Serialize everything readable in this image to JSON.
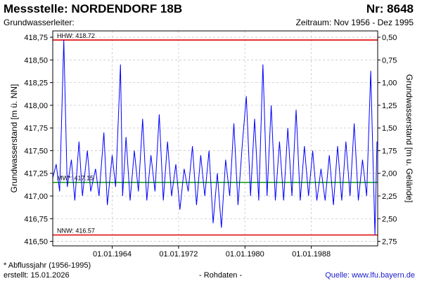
{
  "header": {
    "title": "Messstelle: NORDENDORF 18B",
    "number": "Nr: 8648",
    "aquifer": "Grundwasserleiter:",
    "period": "Zeitraum: Nov 1956 - Dez 1995"
  },
  "footer": {
    "note": "* Abflussjahr (1956-1995)",
    "created": "erstellt:  15.01.2026",
    "raw": "- Rohdaten -",
    "source": "Quelle:  www.lfu.bayern.de"
  },
  "colors": {
    "series": "#0000ff",
    "extreme_lines": "#e00000",
    "mean_line": "#009900",
    "grid": "#c8c8c8"
  },
  "chart_data": {
    "type": "line",
    "ylabel": "Grundwasserstand [m ü. NN]",
    "ylabel_right": "Grundwasserstand [m u. Gelände]",
    "ylim": [
      416.45,
      418.82
    ],
    "xlim": [
      "1956-11-01",
      "1995-12-31"
    ],
    "grid": true,
    "y_ticks": [
      "416,50",
      "416,75",
      "417,00",
      "417,25",
      "417,50",
      "417,75",
      "418,00",
      "418,25",
      "418,50",
      "418,75"
    ],
    "y_tick_values": [
      416.5,
      416.75,
      417.0,
      417.25,
      417.5,
      417.75,
      418.0,
      418.25,
      418.5,
      418.75
    ],
    "y_ticks_right": [
      "0,50",
      "0,75",
      "1,00",
      "1,25",
      "1,50",
      "1,75",
      "2,00",
      "2,25",
      "2,50",
      "2,75"
    ],
    "y_tick_right_values": [
      0.5,
      0.75,
      1.0,
      1.25,
      1.5,
      1.75,
      2.0,
      2.25,
      2.5,
      2.75
    ],
    "x_ticks": [
      "01.01.1964",
      "01.01.1972",
      "01.01.1980",
      "01.01.1988"
    ],
    "x_tick_dates": [
      "1964-01-01",
      "1972-01-01",
      "1980-01-01",
      "1988-01-01"
    ],
    "reference_lines": [
      {
        "label": "HHW: 418.72",
        "value": 418.72,
        "kind": "extreme"
      },
      {
        "label": "MW*: 417.15",
        "value": 417.15,
        "kind": "mean"
      },
      {
        "label": "NNW: 416.57",
        "value": 416.57,
        "kind": "extreme"
      }
    ],
    "series": [
      {
        "x": [
          "1956-11-01",
          "1957-04-01",
          "1957-09-01",
          "1958-03-01",
          "1958-08-01",
          "1959-02-01",
          "1959-07-01",
          "1960-01-01",
          "1960-06-01",
          "1961-01-01",
          "1961-06-01",
          "1962-01-01",
          "1962-06-01",
          "1963-01-01",
          "1963-06-01",
          "1964-01-01",
          "1964-06-01",
          "1965-01-01",
          "1965-04-01",
          "1965-09-01",
          "1966-03-01",
          "1966-09-01",
          "1967-03-01",
          "1967-09-01",
          "1968-03-01",
          "1968-09-01",
          "1969-03-01",
          "1969-09-01",
          "1970-03-01",
          "1970-09-01",
          "1971-03-01",
          "1971-09-01",
          "1972-03-01",
          "1972-09-01",
          "1973-03-01",
          "1973-09-01",
          "1974-03-01",
          "1974-09-01",
          "1975-03-01",
          "1975-09-01",
          "1976-03-01",
          "1976-09-01",
          "1977-03-01",
          "1977-09-01",
          "1978-03-01",
          "1978-09-01",
          "1979-03-01",
          "1979-09-01",
          "1980-03-01",
          "1980-09-01",
          "1981-03-01",
          "1981-09-01",
          "1982-03-01",
          "1982-09-01",
          "1983-03-01",
          "1983-09-01",
          "1984-03-01",
          "1984-09-01",
          "1985-03-01",
          "1985-09-01",
          "1986-03-01",
          "1986-09-01",
          "1987-03-01",
          "1987-09-01",
          "1988-03-01",
          "1988-09-01",
          "1989-03-01",
          "1989-09-01",
          "1990-03-01",
          "1990-09-01",
          "1991-03-01",
          "1991-09-01",
          "1992-03-01",
          "1992-09-01",
          "1993-03-01",
          "1993-09-01",
          "1994-03-01",
          "1994-09-01",
          "1995-03-01",
          "1995-09-01",
          "1995-12-01"
        ],
        "y": [
          417.2,
          417.35,
          417.05,
          418.72,
          417.1,
          417.4,
          416.95,
          417.6,
          417.0,
          417.5,
          417.05,
          417.3,
          417.0,
          417.7,
          416.9,
          417.45,
          417.1,
          418.45,
          417.0,
          417.65,
          416.95,
          417.5,
          417.05,
          417.85,
          416.95,
          417.45,
          417.05,
          417.9,
          416.95,
          417.6,
          417.0,
          417.35,
          416.85,
          417.3,
          417.05,
          417.55,
          416.9,
          417.45,
          417.0,
          417.5,
          416.7,
          417.25,
          416.65,
          417.4,
          417.0,
          417.8,
          416.9,
          417.55,
          418.1,
          417.0,
          417.85,
          416.95,
          418.45,
          417.0,
          418.0,
          416.95,
          417.6,
          416.95,
          417.75,
          417.0,
          417.95,
          416.95,
          417.55,
          417.0,
          417.5,
          416.95,
          417.3,
          416.95,
          417.45,
          416.9,
          417.55,
          416.95,
          417.6,
          417.0,
          417.8,
          416.95,
          417.4,
          417.0,
          418.38,
          416.57,
          417.6
        ]
      }
    ]
  }
}
